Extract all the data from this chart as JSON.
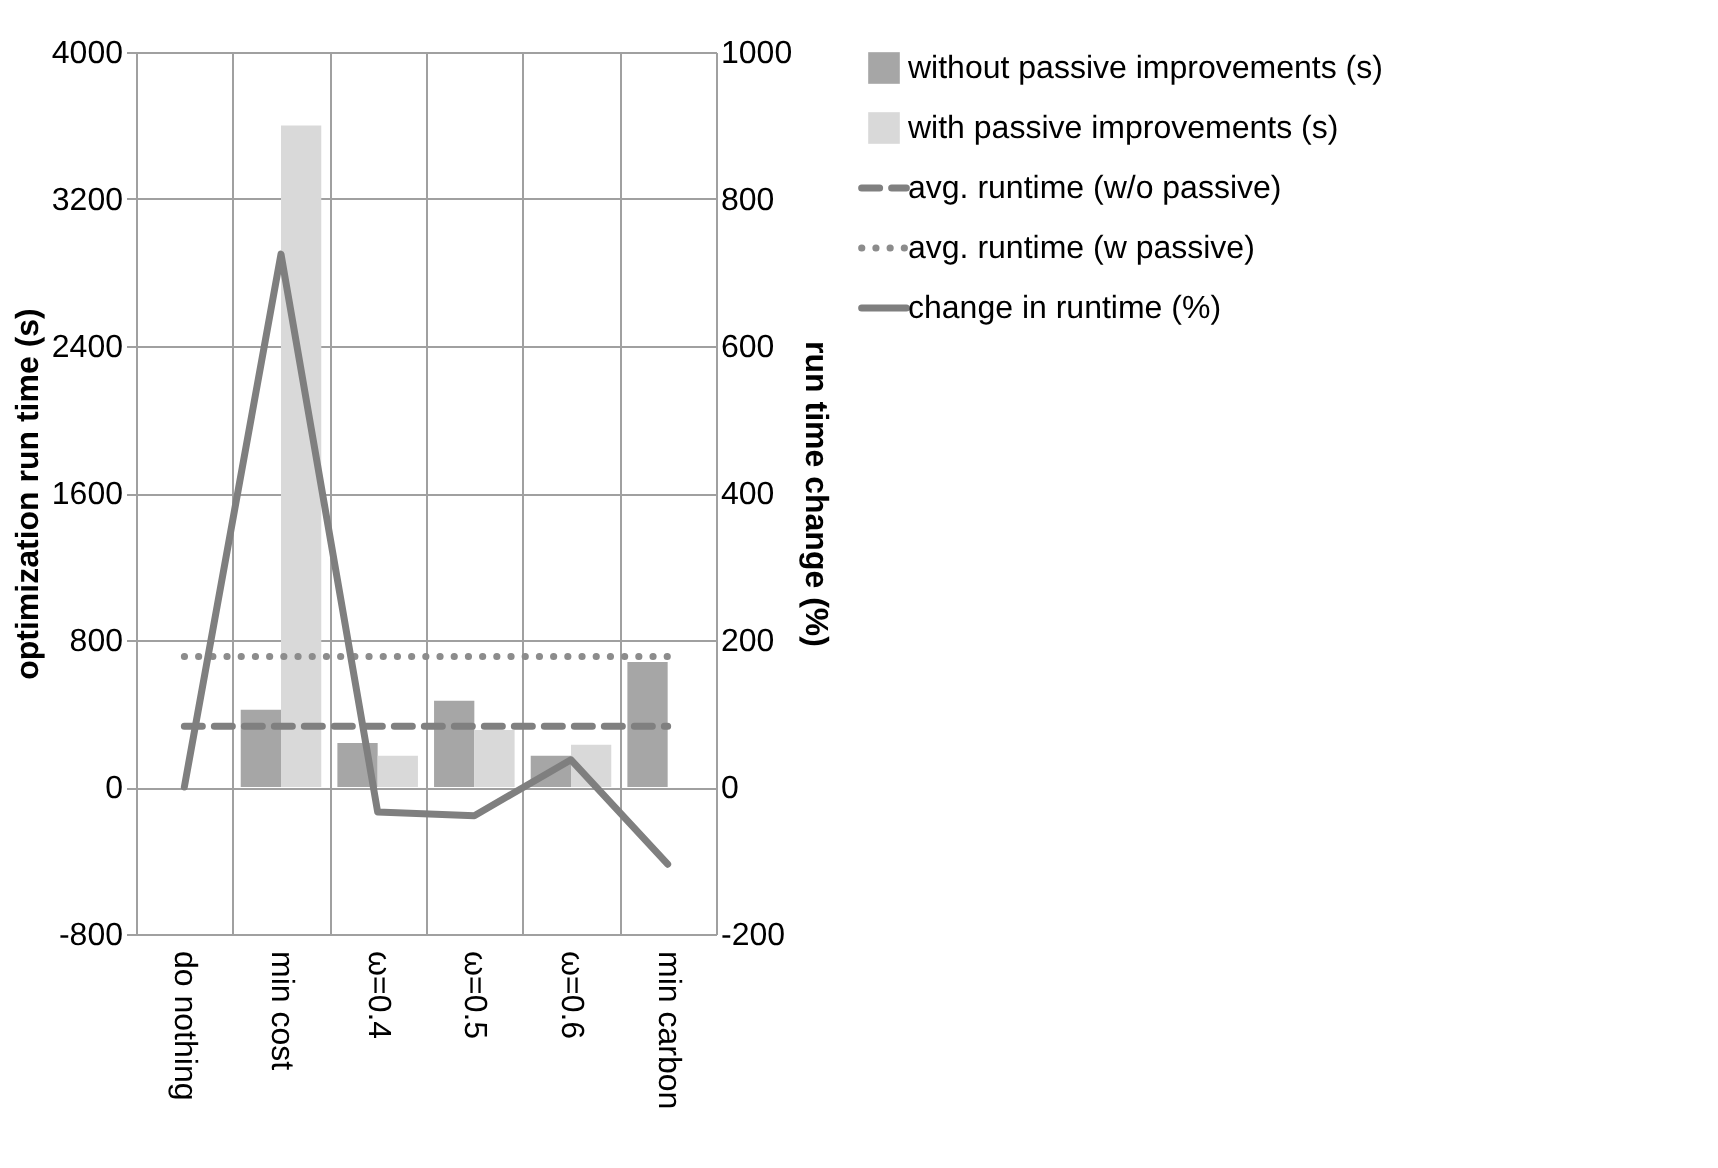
{
  "chart_data": {
    "type": "bar",
    "xlabel": null,
    "ylabel": "optimization run time (s)",
    "y2label": "run time change (%)",
    "categories": [
      "do nothing",
      "min cost",
      "ω=0.4",
      "ω=0.5",
      "ω=0.6",
      "min carbon"
    ],
    "series": [
      {
        "name": "without passive improvements (s)",
        "color": "#a6a6a6",
        "values": [
          0,
          420,
          240,
          470,
          170,
          680
        ]
      },
      {
        "name": "with passive improvements (s)",
        "color": "#d9d9d9",
        "values": [
          0,
          3600,
          170,
          310,
          230,
          null
        ]
      },
      {
        "name": "avg. runtime (w/o passive)",
        "type": "line",
        "line_style": "dashed",
        "color": "#808080",
        "values": [
          330,
          330,
          330,
          330,
          330,
          330
        ]
      },
      {
        "name": "avg. runtime (w passive)",
        "type": "line",
        "line_style": "dotted",
        "color": "#8c8c8c",
        "values": [
          710,
          710,
          710,
          710,
          710,
          710
        ]
      },
      {
        "name": "change in runtime (%)",
        "type": "line",
        "line_style": "solid",
        "axis": "y2",
        "color": "#7f7f7f",
        "values": [
          0,
          725,
          -34,
          -39,
          37,
          -105
        ]
      }
    ],
    "ylim": [
      -800,
      4000
    ],
    "yticks": [
      -800,
      0,
      800,
      1600,
      2400,
      3200,
      4000
    ],
    "y2lim": [
      -200,
      1000
    ],
    "y2ticks": [
      -200,
      0,
      200,
      400,
      600,
      800,
      1000
    ],
    "grid": true,
    "legend": "right",
    "marker": "none"
  }
}
